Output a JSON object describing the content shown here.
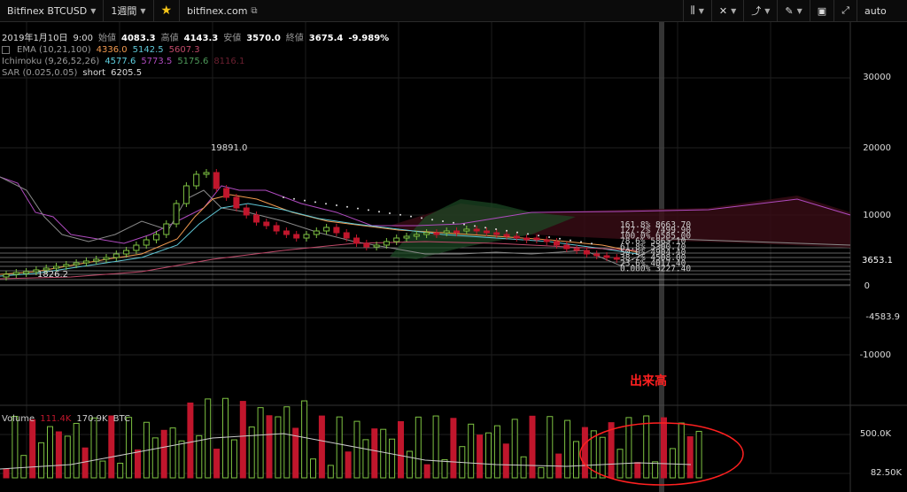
{
  "toolbar": {
    "symbol": "Bitfinex BTCUSD",
    "interval": "1週間",
    "site": "bitfinex.com",
    "auto": "auto"
  },
  "header": {
    "date": "2019年1月10日",
    "time": "9:00",
    "open_label": "始値",
    "open": "4083.3",
    "high_label": "高値",
    "high": "4143.3",
    "low_label": "安値",
    "low": "3570.0",
    "close_label": "終値",
    "close": "3675.4",
    "change": "-9.989%"
  },
  "indicators": {
    "ema": {
      "name": "EMA (10,21,100)",
      "v1": "4336.0",
      "v2": "5142.5",
      "v3": "5607.3"
    },
    "ichimoku": {
      "name": "Ichimoku (9,26,52,26)",
      "v1": "4577.6",
      "v2": "5773.5",
      "v3": "5175.6",
      "v4": "8116.1"
    },
    "sar": {
      "name": "SAR (0.025,0.05)",
      "v1": "short",
      "v2": "6205.5"
    }
  },
  "price_axis": [
    "30000",
    "20000",
    "10000",
    "3653.1",
    "0",
    "-4583.9",
    "-10000"
  ],
  "annotations": {
    "peak": "19891.0",
    "low": "1826.2"
  },
  "fib": [
    "161.8%  8663.70",
    "127.2%  7499.90",
    "100.0%  6585.00",
    "78.6%  5865.10",
    "61.8%  5300.70",
    "50.0%  4904.40",
    "38.2%  4508.00",
    "23.6%  4017.40",
    "0.000%  3227.40"
  ],
  "volume": {
    "label": "Volume",
    "v1": "111.4K",
    "v2": "170.9K",
    "unit": "BTC",
    "axis": [
      "500.0K",
      "82.50K"
    ]
  },
  "note": "出来高",
  "colors": {
    "up": "#7ec242",
    "down": "#c0162c",
    "accent_red": "#ff2020",
    "ema1": "#f29a50",
    "ema2": "#5fc7d6",
    "ema3": "#c04a6a",
    "ichi1": "#5fd0e0",
    "ichi2": "#b04bc0",
    "ichi3": "#4e9a5a",
    "ichi4": "#6a2030"
  }
}
